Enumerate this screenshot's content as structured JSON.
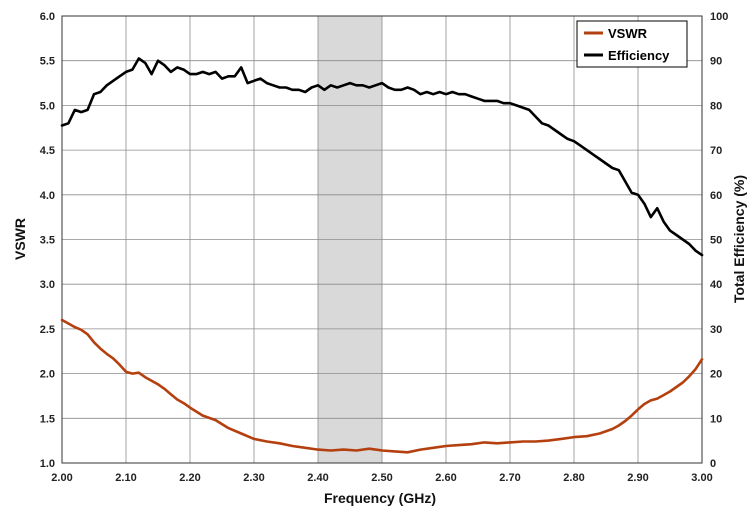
{
  "chart_data": {
    "type": "line",
    "xlabel": "Frequency (GHz)",
    "ylabel_left": "VSWR",
    "ylabel_right": "Total Efficiency (%)",
    "xlim": [
      2.0,
      3.0
    ],
    "ylim_left": [
      1.0,
      6.0
    ],
    "ylim_right": [
      0,
      100
    ],
    "x_ticks": [
      "2.00",
      "2.10",
      "2.20",
      "2.30",
      "2.40",
      "2.50",
      "2.60",
      "2.70",
      "2.80",
      "2.90",
      "3.00"
    ],
    "y_left_ticks": [
      "1.0",
      "1.5",
      "2.0",
      "2.5",
      "3.0",
      "3.5",
      "4.0",
      "4.5",
      "5.0",
      "5.5",
      "6.0"
    ],
    "y_right_ticks": [
      "0",
      "10",
      "20",
      "30",
      "40",
      "50",
      "60",
      "70",
      "80",
      "90",
      "100"
    ],
    "grid": true,
    "legend_position": "top-right",
    "highlight_band": {
      "x_start": 2.4,
      "x_end": 2.5,
      "color": "#d9d9d9"
    },
    "series": [
      {
        "name": "VSWR",
        "axis": "left",
        "color": "#b5400f",
        "x": [
          2.0,
          2.01,
          2.02,
          2.03,
          2.04,
          2.05,
          2.06,
          2.07,
          2.08,
          2.09,
          2.1,
          2.11,
          2.12,
          2.13,
          2.14,
          2.15,
          2.16,
          2.17,
          2.18,
          2.19,
          2.2,
          2.22,
          2.24,
          2.26,
          2.28,
          2.3,
          2.32,
          2.34,
          2.36,
          2.38,
          2.4,
          2.42,
          2.44,
          2.46,
          2.48,
          2.5,
          2.52,
          2.54,
          2.56,
          2.58,
          2.6,
          2.62,
          2.64,
          2.66,
          2.68,
          2.7,
          2.72,
          2.74,
          2.76,
          2.78,
          2.8,
          2.82,
          2.84,
          2.86,
          2.87,
          2.88,
          2.89,
          2.9,
          2.91,
          2.92,
          2.93,
          2.94,
          2.95,
          2.96,
          2.97,
          2.98,
          2.99,
          3.0
        ],
        "values": [
          2.6,
          2.56,
          2.52,
          2.49,
          2.44,
          2.35,
          2.28,
          2.22,
          2.17,
          2.1,
          2.02,
          2.0,
          2.01,
          1.96,
          1.92,
          1.88,
          1.83,
          1.77,
          1.71,
          1.67,
          1.62,
          1.53,
          1.48,
          1.39,
          1.33,
          1.27,
          1.24,
          1.22,
          1.19,
          1.17,
          1.15,
          1.14,
          1.15,
          1.14,
          1.16,
          1.14,
          1.13,
          1.12,
          1.15,
          1.17,
          1.19,
          1.2,
          1.21,
          1.23,
          1.22,
          1.23,
          1.24,
          1.24,
          1.25,
          1.27,
          1.29,
          1.3,
          1.33,
          1.38,
          1.42,
          1.47,
          1.53,
          1.6,
          1.66,
          1.7,
          1.72,
          1.76,
          1.8,
          1.85,
          1.9,
          1.97,
          2.05,
          2.16
        ]
      },
      {
        "name": "Efficiency",
        "axis": "right",
        "color": "#000000",
        "x": [
          2.0,
          2.01,
          2.02,
          2.03,
          2.04,
          2.05,
          2.06,
          2.07,
          2.08,
          2.09,
          2.1,
          2.11,
          2.12,
          2.13,
          2.14,
          2.15,
          2.16,
          2.17,
          2.18,
          2.19,
          2.2,
          2.21,
          2.22,
          2.23,
          2.24,
          2.25,
          2.26,
          2.27,
          2.28,
          2.29,
          2.3,
          2.31,
          2.32,
          2.33,
          2.34,
          2.35,
          2.36,
          2.37,
          2.38,
          2.39,
          2.4,
          2.41,
          2.42,
          2.43,
          2.44,
          2.45,
          2.46,
          2.47,
          2.48,
          2.49,
          2.5,
          2.51,
          2.52,
          2.53,
          2.54,
          2.55,
          2.56,
          2.57,
          2.58,
          2.59,
          2.6,
          2.61,
          2.62,
          2.63,
          2.64,
          2.65,
          2.66,
          2.67,
          2.68,
          2.69,
          2.7,
          2.71,
          2.72,
          2.73,
          2.74,
          2.75,
          2.76,
          2.77,
          2.78,
          2.79,
          2.8,
          2.81,
          2.82,
          2.83,
          2.84,
          2.85,
          2.86,
          2.87,
          2.88,
          2.89,
          2.9,
          2.91,
          2.92,
          2.93,
          2.94,
          2.95,
          2.96,
          2.97,
          2.98,
          2.99,
          3.0
        ],
        "values": [
          75.5,
          76,
          79,
          78.5,
          79,
          82.5,
          83,
          84.5,
          85.5,
          86.5,
          87.5,
          88,
          90.5,
          89.5,
          87,
          90,
          89,
          87.5,
          88.5,
          88,
          87,
          87,
          87.5,
          87,
          87.5,
          86,
          86.5,
          86.5,
          88.5,
          85,
          85.5,
          86,
          85,
          84.5,
          84,
          84,
          83.5,
          83.5,
          83,
          84,
          84.5,
          83.5,
          84.5,
          84,
          84.5,
          85,
          84.5,
          84.5,
          84,
          84.5,
          85,
          84,
          83.5,
          83.5,
          84,
          83.5,
          82.5,
          83,
          82.5,
          83,
          82.5,
          83,
          82.5,
          82.5,
          82,
          81.5,
          81,
          81,
          81,
          80.5,
          80.5,
          80,
          79.5,
          79,
          77.5,
          76,
          75.5,
          74.5,
          73.5,
          72.5,
          72,
          71,
          70,
          69,
          68,
          67,
          66,
          65.5,
          63,
          60.5,
          60,
          58,
          55,
          57,
          54,
          52,
          51,
          50,
          49,
          47.5,
          46.5
        ]
      }
    ]
  }
}
